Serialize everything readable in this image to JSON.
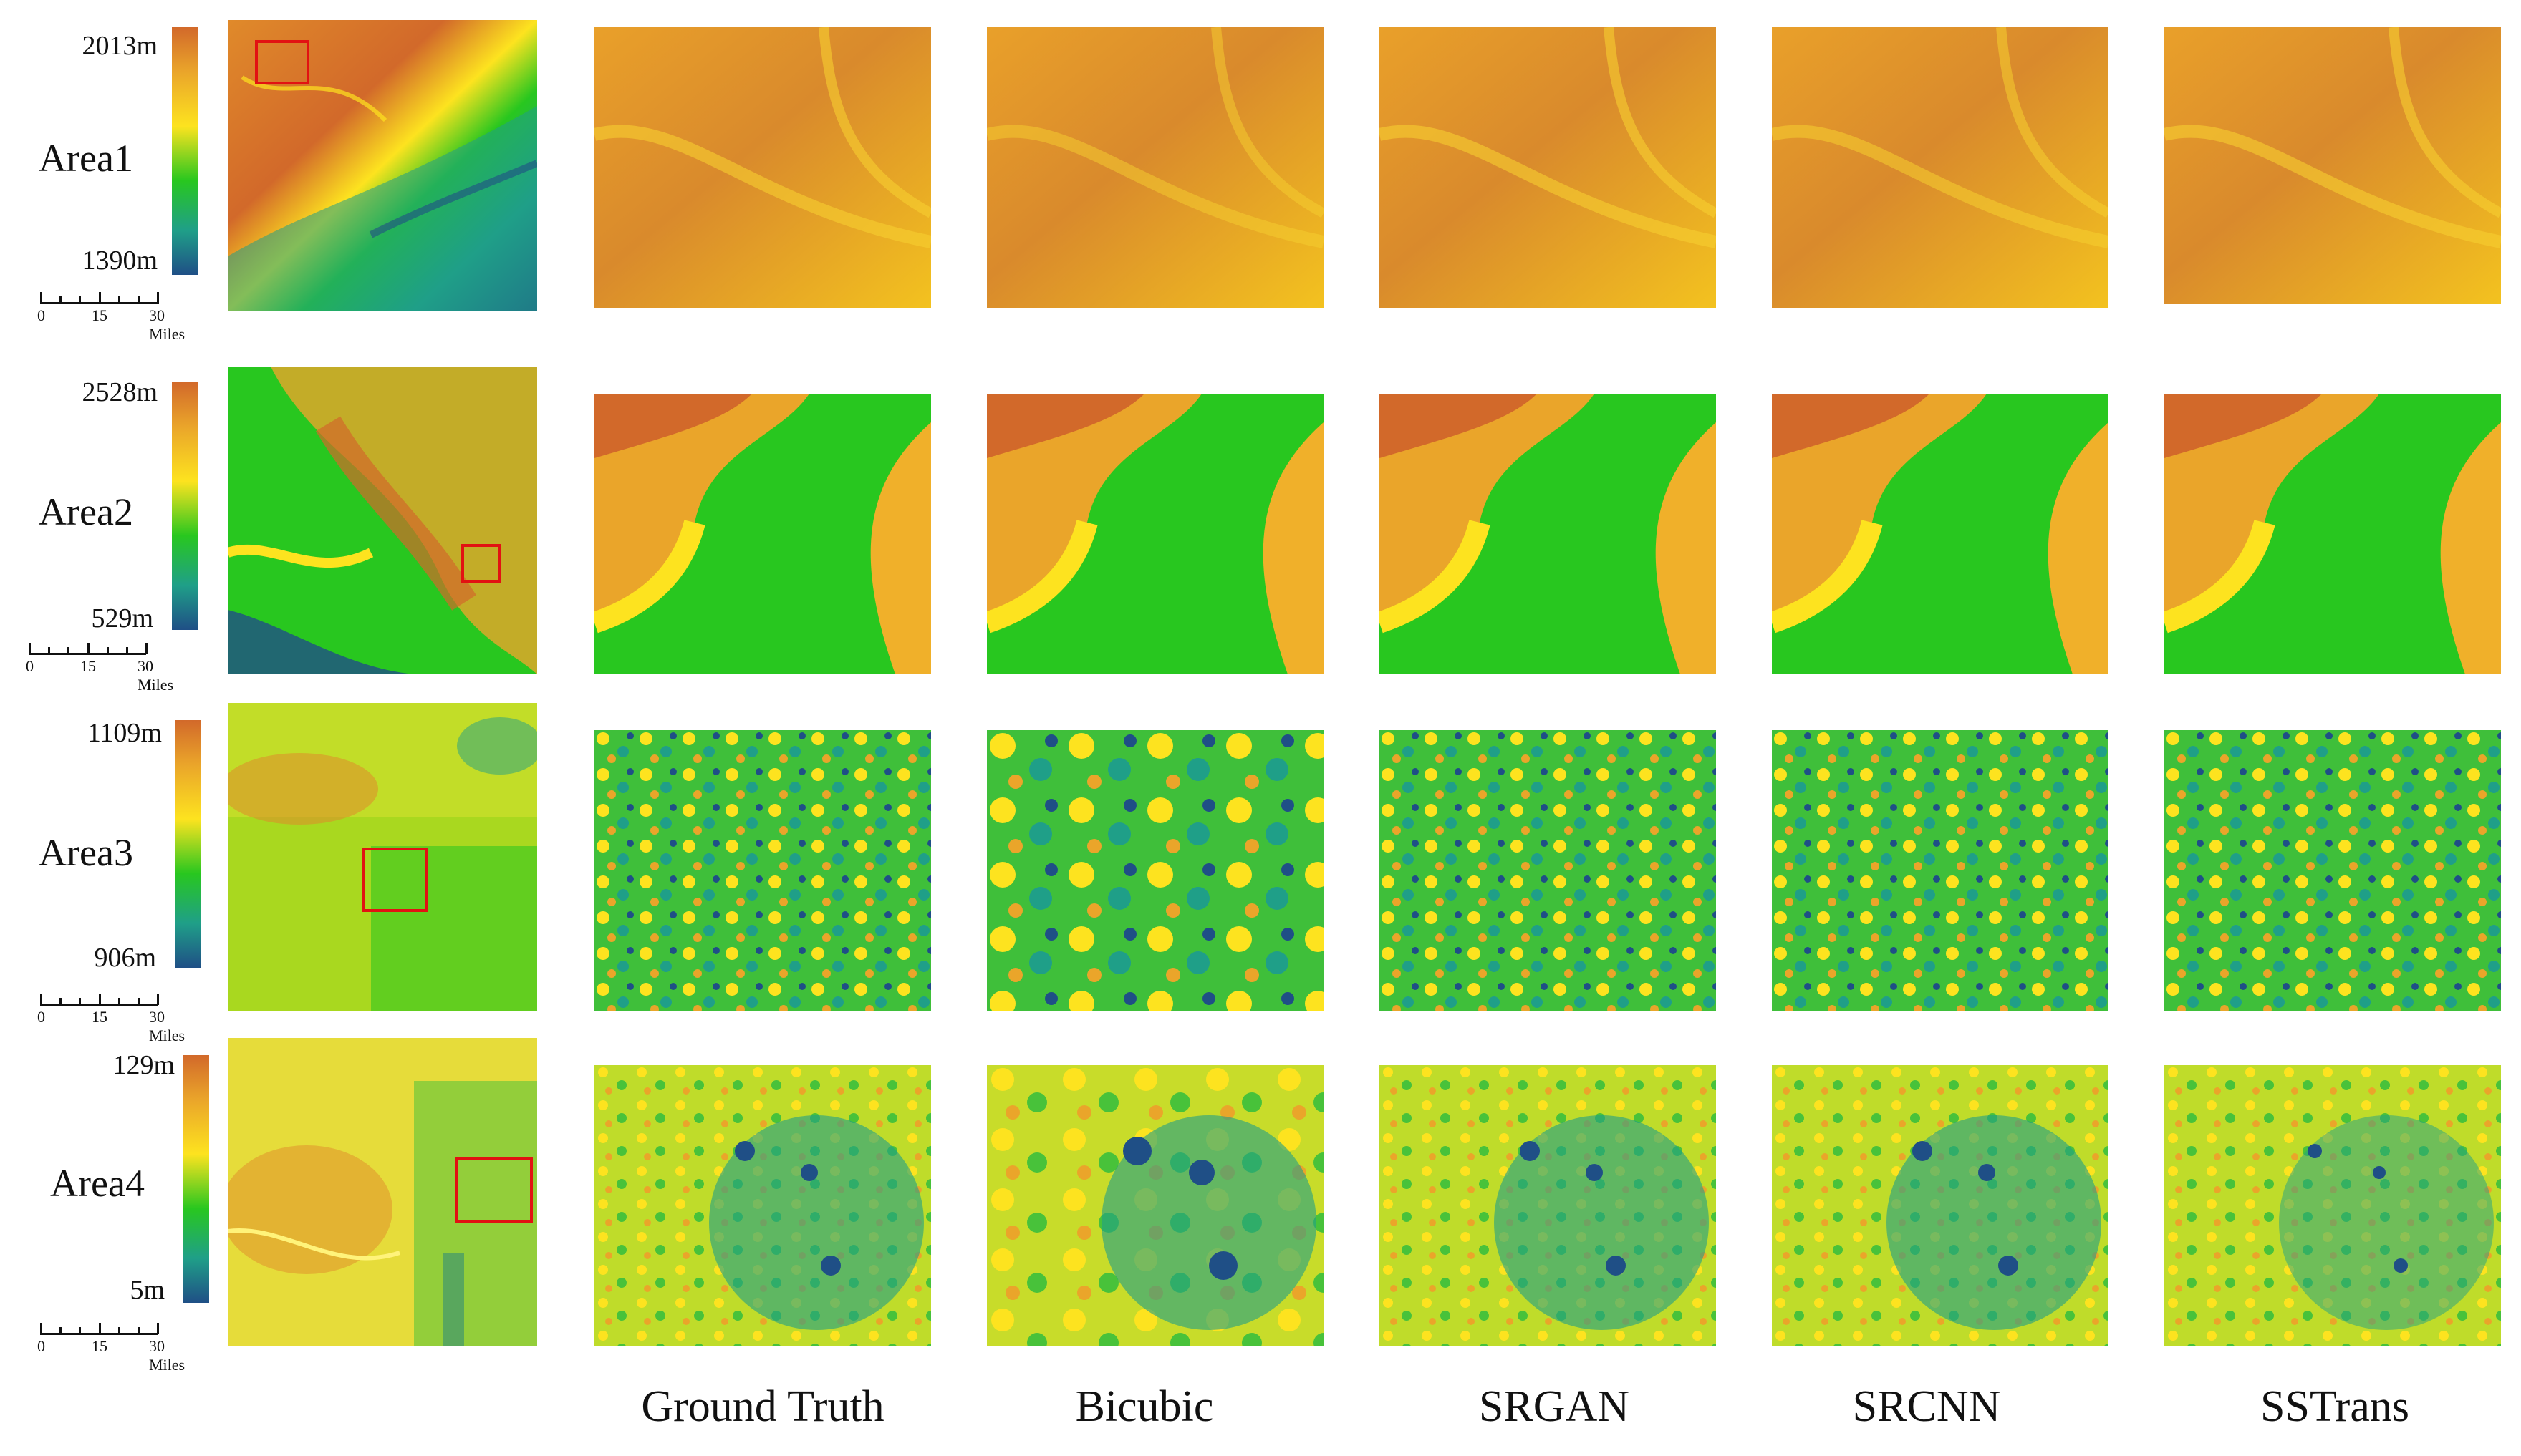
{
  "areas": [
    {
      "label": "Area1",
      "max": "2013m",
      "min": "1390m"
    },
    {
      "label": "Area2",
      "max": "2528m",
      "min": "529m"
    },
    {
      "label": "Area3",
      "max": "1109m",
      "min": "906m"
    },
    {
      "label": "Area4",
      "max": "129m",
      "min": "5m"
    }
  ],
  "scale": {
    "zero": "0",
    "mid": "15",
    "end": "30 Miles"
  },
  "columns": [
    "Ground Truth",
    "Bicubic",
    "SRGAN",
    "SRCNN",
    "SSTrans"
  ],
  "colormap": [
    "#1f4f86",
    "#1f9f88",
    "#28c71f",
    "#fde31f",
    "#eaa52a",
    "#d2692a"
  ]
}
